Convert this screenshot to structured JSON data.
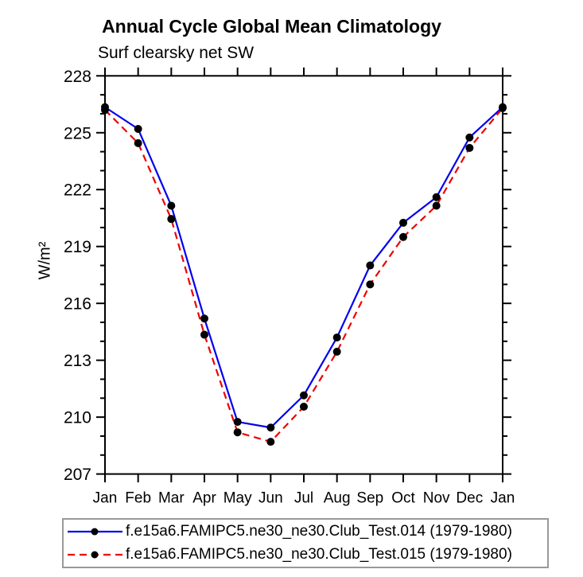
{
  "title": "Annual Cycle Global Mean Climatology",
  "subtitle": "Surf clearsky net SW",
  "chart_data": {
    "type": "line",
    "title": "Annual Cycle Global Mean Climatology",
    "subtitle": "Surf clearsky net SW",
    "xlabel": "",
    "ylabel": "W/m²",
    "x": [
      "Jan",
      "Feb",
      "Mar",
      "Apr",
      "May",
      "Jun",
      "Jul",
      "Aug",
      "Sep",
      "Oct",
      "Nov",
      "Dec",
      "Jan"
    ],
    "ylim": [
      207,
      228
    ],
    "ytick_major_step": 3,
    "ytick_minor_step": 1,
    "ytick_labels": [
      "207",
      "210",
      "213",
      "216",
      "219",
      "222",
      "225",
      "228"
    ],
    "grid": "off",
    "legend_position": "bottom",
    "series": [
      {
        "name": "f.e15a6.FAMIPC5.ne30_ne30.Club_Test.014 (1979-1980)",
        "color": "#0000ee",
        "line_style": "solid",
        "marker": "filled-circle",
        "marker_color": "#000000",
        "values": [
          226.35,
          225.2,
          221.15,
          215.2,
          209.75,
          209.45,
          211.15,
          214.2,
          218.0,
          220.25,
          221.6,
          224.75,
          226.35
        ]
      },
      {
        "name": "f.e15a6.FAMIPC5.ne30_ne30.Club_Test.015 (1979-1980)",
        "color": "#ee0000",
        "line_style": "dashed",
        "marker": "filled-circle",
        "marker_color": "#000000",
        "values": [
          226.2,
          224.45,
          220.45,
          214.35,
          209.2,
          208.7,
          210.55,
          213.45,
          217.0,
          219.5,
          221.15,
          224.2,
          226.3
        ]
      }
    ]
  },
  "colors": {
    "axis": "#000000",
    "tick_label": "#000000",
    "legend_border": "#999999",
    "background": "#ffffff"
  }
}
